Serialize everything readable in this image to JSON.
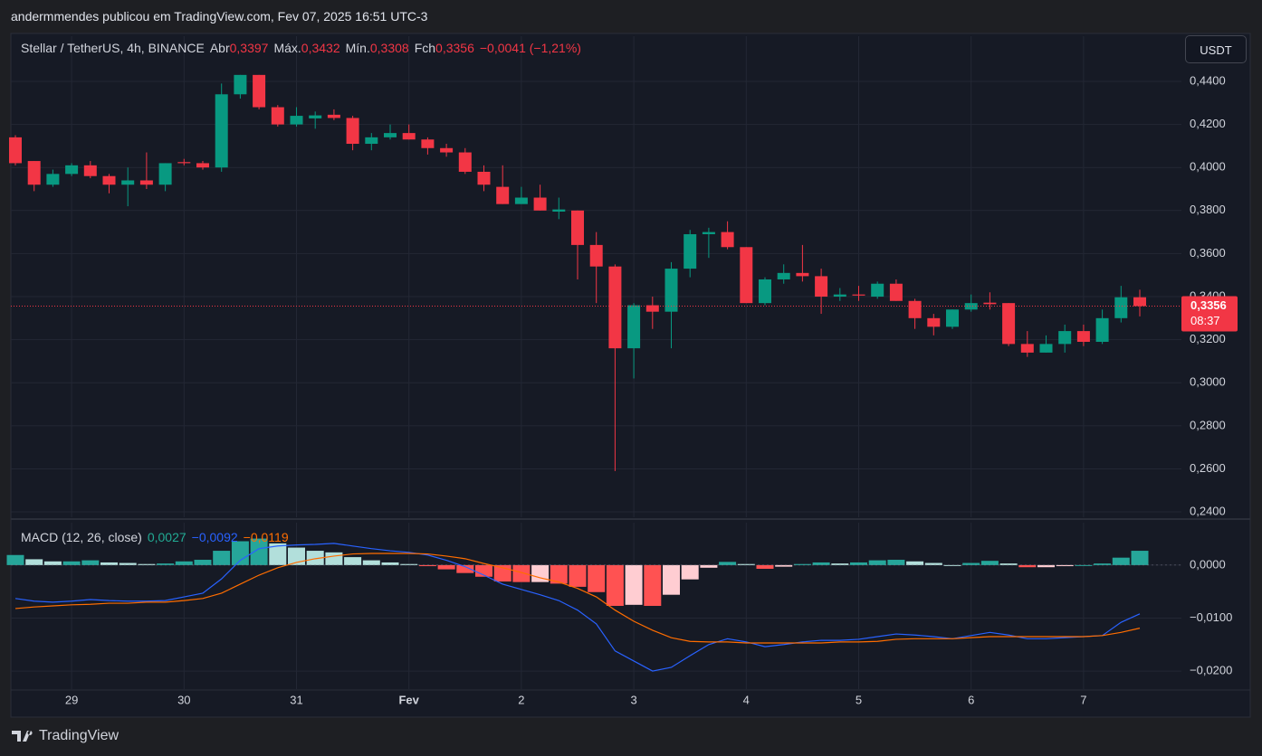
{
  "header": {
    "text": "andermmendes publicou em TradingView.com, Fev 07, 2025 16:51 UTC-3"
  },
  "currency_button": "USDT",
  "footer": {
    "brand": "TradingView"
  },
  "chart_data": [
    {
      "type": "candlestick",
      "title": "Stellar / TetherUS, 4h, BINANCE",
      "legend": [
        {
          "label": "Abr",
          "value": "0,3397"
        },
        {
          "label": "Máx.",
          "value": "0,3432"
        },
        {
          "label": "Mín.",
          "value": "0,3308"
        },
        {
          "label": "Fch",
          "value": "0,3356"
        }
      ],
      "change": "−0,0041 (−1,21%)",
      "open": [
        0.414,
        0.403,
        0.392,
        0.397,
        0.401,
        0.396,
        0.392,
        0.394,
        0.392,
        0.4025,
        0.402,
        0.4,
        0.434,
        0.443,
        0.428,
        0.42,
        0.4228,
        0.4245,
        0.423,
        0.411,
        0.414,
        0.416,
        0.413,
        0.409,
        0.407,
        0.398,
        0.391,
        0.383,
        0.386,
        0.3795,
        0.38,
        0.364,
        0.354,
        0.316,
        0.336,
        0.333,
        0.353,
        0.369,
        0.37,
        0.363,
        0.337,
        0.348,
        0.351,
        0.3495,
        0.34,
        0.341,
        0.34,
        0.346,
        0.338,
        0.33,
        0.326,
        0.334,
        0.3372,
        0.337,
        0.318,
        0.314,
        0.318,
        0.324,
        0.319,
        0.33,
        0.3397
      ],
      "high": [
        0.415,
        0.403,
        0.399,
        0.402,
        0.403,
        0.397,
        0.4,
        0.407,
        0.402,
        0.404,
        0.403,
        0.439,
        0.443,
        0.443,
        0.429,
        0.428,
        0.426,
        0.427,
        0.424,
        0.416,
        0.42,
        0.42,
        0.414,
        0.411,
        0.409,
        0.401,
        0.401,
        0.391,
        0.392,
        0.386,
        0.38,
        0.37,
        0.355,
        0.337,
        0.34,
        0.356,
        0.371,
        0.372,
        0.375,
        0.363,
        0.349,
        0.355,
        0.364,
        0.353,
        0.344,
        0.345,
        0.347,
        0.348,
        0.339,
        0.332,
        0.334,
        0.341,
        0.342,
        0.337,
        0.324,
        0.322,
        0.327,
        0.327,
        0.334,
        0.345,
        0.3432
      ],
      "low": [
        0.401,
        0.389,
        0.391,
        0.396,
        0.395,
        0.388,
        0.382,
        0.39,
        0.389,
        0.401,
        0.399,
        0.398,
        0.432,
        0.427,
        0.419,
        0.419,
        0.418,
        0.422,
        0.408,
        0.408,
        0.413,
        0.413,
        0.406,
        0.405,
        0.397,
        0.389,
        0.383,
        0.383,
        0.38,
        0.376,
        0.348,
        0.337,
        0.259,
        0.302,
        0.325,
        0.316,
        0.349,
        0.358,
        0.362,
        0.337,
        0.336,
        0.346,
        0.347,
        0.332,
        0.338,
        0.338,
        0.339,
        0.338,
        0.325,
        0.322,
        0.325,
        0.333,
        0.334,
        0.317,
        0.312,
        0.314,
        0.314,
        0.317,
        0.318,
        0.328,
        0.3308
      ],
      "close": [
        0.402,
        0.392,
        0.397,
        0.401,
        0.396,
        0.392,
        0.394,
        0.392,
        0.402,
        0.402,
        0.4,
        0.434,
        0.443,
        0.428,
        0.42,
        0.424,
        0.4242,
        0.423,
        0.411,
        0.414,
        0.416,
        0.413,
        0.409,
        0.407,
        0.398,
        0.392,
        0.383,
        0.386,
        0.38,
        0.3805,
        0.364,
        0.354,
        0.316,
        0.336,
        0.333,
        0.353,
        0.369,
        0.37,
        0.363,
        0.337,
        0.348,
        0.351,
        0.3495,
        0.34,
        0.341,
        0.3405,
        0.346,
        0.338,
        0.33,
        0.326,
        0.334,
        0.337,
        0.3365,
        0.318,
        0.314,
        0.318,
        0.324,
        0.319,
        0.33,
        0.3397,
        0.3356
      ],
      "up_color": "#089981",
      "down_color": "#f23645",
      "ylim": [
        0.2375,
        0.461
      ],
      "yticks": [
        {
          "value": 0.24,
          "label": "0,2400"
        },
        {
          "value": 0.26,
          "label": "0,2600"
        },
        {
          "value": 0.28,
          "label": "0,2800"
        },
        {
          "value": 0.3,
          "label": "0,3000"
        },
        {
          "value": 0.32,
          "label": "0,3200"
        },
        {
          "value": 0.34,
          "label": "0,3400"
        },
        {
          "value": 0.36,
          "label": "0,3600"
        },
        {
          "value": 0.38,
          "label": "0,3800"
        },
        {
          "value": 0.4,
          "label": "0,4000"
        },
        {
          "value": 0.42,
          "label": "0,4200"
        },
        {
          "value": 0.44,
          "label": "0,4400"
        }
      ],
      "xticks": [
        {
          "value": 3,
          "label": "29"
        },
        {
          "value": 9,
          "label": "30"
        },
        {
          "value": 15,
          "label": "31"
        },
        {
          "value": 21,
          "label": "Fev"
        },
        {
          "value": 27,
          "label": "2"
        },
        {
          "value": 33,
          "label": "3"
        },
        {
          "value": 39,
          "label": "4"
        },
        {
          "value": 45,
          "label": "5"
        },
        {
          "value": 51,
          "label": "6"
        },
        {
          "value": 57,
          "label": "7"
        }
      ],
      "grid": true,
      "last_price": {
        "value": 0.3356,
        "label": "0,3356",
        "countdown": "08:37"
      }
    },
    {
      "type": "macd",
      "title": "MACD (12, 26, close)",
      "ylim": [
        -0.0234,
        0.008
      ],
      "yticks": [
        {
          "value": 0,
          "label": "0,0000"
        },
        {
          "value": -0.01,
          "label": "−0,0100"
        },
        {
          "value": -0.02,
          "label": "−0,0200"
        }
      ],
      "grid": true,
      "hist_colors": {
        "up_strong": "#26a69a",
        "up_weak": "#b2dfdb",
        "down_strong": "#ff5252",
        "down_weak": "#ffcdd2"
      },
      "series": [
        {
          "style": "histogram",
          "color": "#22ab94",
          "value_label": "0,0027",
          "values": [
            0.0019,
            0.0011,
            0.0007,
            0.0007,
            0.0009,
            0.0005,
            0.0004,
            0.0002,
            0.0003,
            0.0007,
            0.001,
            0.0027,
            0.0045,
            0.005,
            0.0041,
            0.0033,
            0.0027,
            0.0024,
            0.0015,
            0.0009,
            0.0005,
            0.0002,
            -0.0002,
            -0.0008,
            -0.0015,
            -0.0022,
            -0.0031,
            -0.0032,
            -0.0032,
            -0.0035,
            -0.0041,
            -0.0051,
            -0.0077,
            -0.0075,
            -0.0077,
            -0.0056,
            -0.0027,
            -0.0005,
            0.0006,
            0.0002,
            -0.0007,
            -0.0003,
            0.0002,
            0.0005,
            0.0003,
            0.0005,
            0.0009,
            0.001,
            0.0007,
            0.0004,
            0.0,
            0.0004,
            0.0008,
            0.0003,
            -0.0004,
            -0.0004,
            -0.0002,
            0.0,
            0.0003,
            0.0014,
            0.0027
          ]
        },
        {
          "style": "line",
          "color": "#2962ff",
          "value_label": "−0,0092",
          "values": [
            -0.0063,
            -0.0068,
            -0.007,
            -0.0068,
            -0.0065,
            -0.0067,
            -0.0068,
            -0.0068,
            -0.0067,
            -0.006,
            -0.0053,
            -0.0026,
            0.0009,
            0.0031,
            0.0036,
            0.0038,
            0.0039,
            0.0041,
            0.0036,
            0.0031,
            0.0027,
            0.0024,
            0.0019,
            0.0009,
            -0.0003,
            -0.0019,
            -0.0036,
            -0.0046,
            -0.0056,
            -0.0067,
            -0.0085,
            -0.0111,
            -0.0162,
            -0.0181,
            -0.02,
            -0.0193,
            -0.0171,
            -0.015,
            -0.0139,
            -0.0145,
            -0.0154,
            -0.015,
            -0.0145,
            -0.0142,
            -0.0142,
            -0.014,
            -0.0135,
            -0.013,
            -0.0132,
            -0.0135,
            -0.0139,
            -0.0133,
            -0.0127,
            -0.0132,
            -0.0139,
            -0.0139,
            -0.0137,
            -0.0135,
            -0.0133,
            -0.0108,
            -0.0092
          ]
        },
        {
          "style": "line",
          "color": "#ff6d00",
          "value_label": "−0,0119",
          "values": [
            -0.0082,
            -0.0079,
            -0.0077,
            -0.0075,
            -0.0074,
            -0.0072,
            -0.0072,
            -0.007,
            -0.007,
            -0.0067,
            -0.0063,
            -0.0053,
            -0.0036,
            -0.0019,
            -0.0005,
            0.0005,
            0.0012,
            0.0017,
            0.0021,
            0.0022,
            0.0022,
            0.0022,
            0.0021,
            0.0017,
            0.0012,
            0.0003,
            -0.0005,
            -0.0014,
            -0.0024,
            -0.0032,
            -0.0044,
            -0.006,
            -0.0085,
            -0.0106,
            -0.0123,
            -0.0137,
            -0.0144,
            -0.0145,
            -0.0145,
            -0.0147,
            -0.0147,
            -0.0147,
            -0.0147,
            -0.0147,
            -0.0145,
            -0.0145,
            -0.0144,
            -0.014,
            -0.0139,
            -0.0139,
            -0.0139,
            -0.0137,
            -0.0135,
            -0.0135,
            -0.0135,
            -0.0135,
            -0.0135,
            -0.0135,
            -0.0133,
            -0.0127,
            -0.0119
          ]
        }
      ]
    }
  ]
}
